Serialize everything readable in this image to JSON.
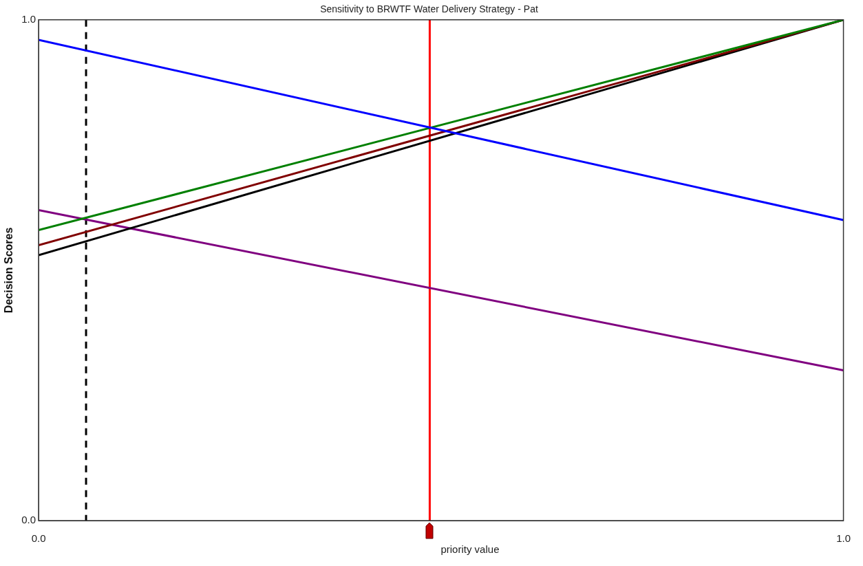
{
  "chart_data": {
    "type": "line",
    "title": "Sensitivity to BRWTF Water Delivery Strategy - Pat",
    "xlabel": "priority value",
    "ylabel": "Decision Scores",
    "x": [
      0,
      1
    ],
    "series": [
      {
        "color": "#0000ff",
        "values": [
          0.96,
          0.6
        ]
      },
      {
        "color": "#008000",
        "values": [
          0.58,
          1.0
        ]
      },
      {
        "color": "#800000",
        "values": [
          0.55,
          1.0
        ]
      },
      {
        "color": "#000000",
        "values": [
          0.53,
          1.0
        ]
      },
      {
        "color": "#800080",
        "values": [
          0.62,
          0.3
        ]
      }
    ],
    "xlim": [
      0,
      1
    ],
    "ylim": [
      0,
      1
    ],
    "xticks": [
      {
        "value": 0,
        "label": "0.0"
      },
      {
        "value": 1,
        "label": "1.0"
      }
    ],
    "yticks": [
      {
        "value": 0,
        "label": "0.0"
      },
      {
        "value": 1,
        "label": "1.0"
      }
    ],
    "ref_lines": [
      {
        "axis": "x",
        "value": 0.486,
        "color": "#ff0000",
        "line_style": "solid"
      },
      {
        "axis": "x",
        "value": 0.059,
        "color": "#000000",
        "line_style": "dashed"
      }
    ],
    "legend": false,
    "marker": "none",
    "line_style": "solid"
  }
}
